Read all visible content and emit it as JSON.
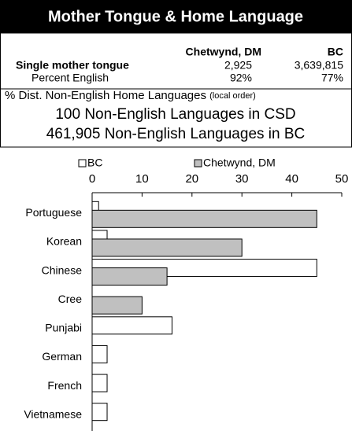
{
  "header": {
    "title": "Mother Tongue & Home Language"
  },
  "table": {
    "columns": [
      "Chetwynd, DM",
      "BC"
    ],
    "rows": [
      [
        "Single mother tongue",
        "2,925",
        "3,639,815"
      ],
      [
        "Percent English",
        "92%",
        "77%"
      ]
    ]
  },
  "notes": {
    "heading": "% Dist. Non-English Home Languages",
    "heading_suffix": "(local order)",
    "line1": "100 Non-English Languages in CSD",
    "line2": "461,905 Non-English Languages in BC"
  },
  "chart_data": {
    "type": "hbar",
    "categories": [
      "Portuguese",
      "Korean",
      "Chinese",
      "Cree",
      "Punjabi",
      "German",
      "French",
      "Vietnamese"
    ],
    "series": [
      {
        "name": "BC",
        "color": "#ffffff",
        "values": [
          1.3,
          3,
          45,
          0,
          16,
          3,
          3,
          3
        ]
      },
      {
        "name": "Chetwynd, DM",
        "color": "#c0c0c0",
        "values": [
          45,
          30,
          15,
          10,
          null,
          null,
          null,
          null
        ]
      }
    ],
    "xlim": [
      0,
      50
    ],
    "xticks": [
      0,
      10,
      20,
      30,
      40,
      50
    ],
    "legend": "top"
  }
}
